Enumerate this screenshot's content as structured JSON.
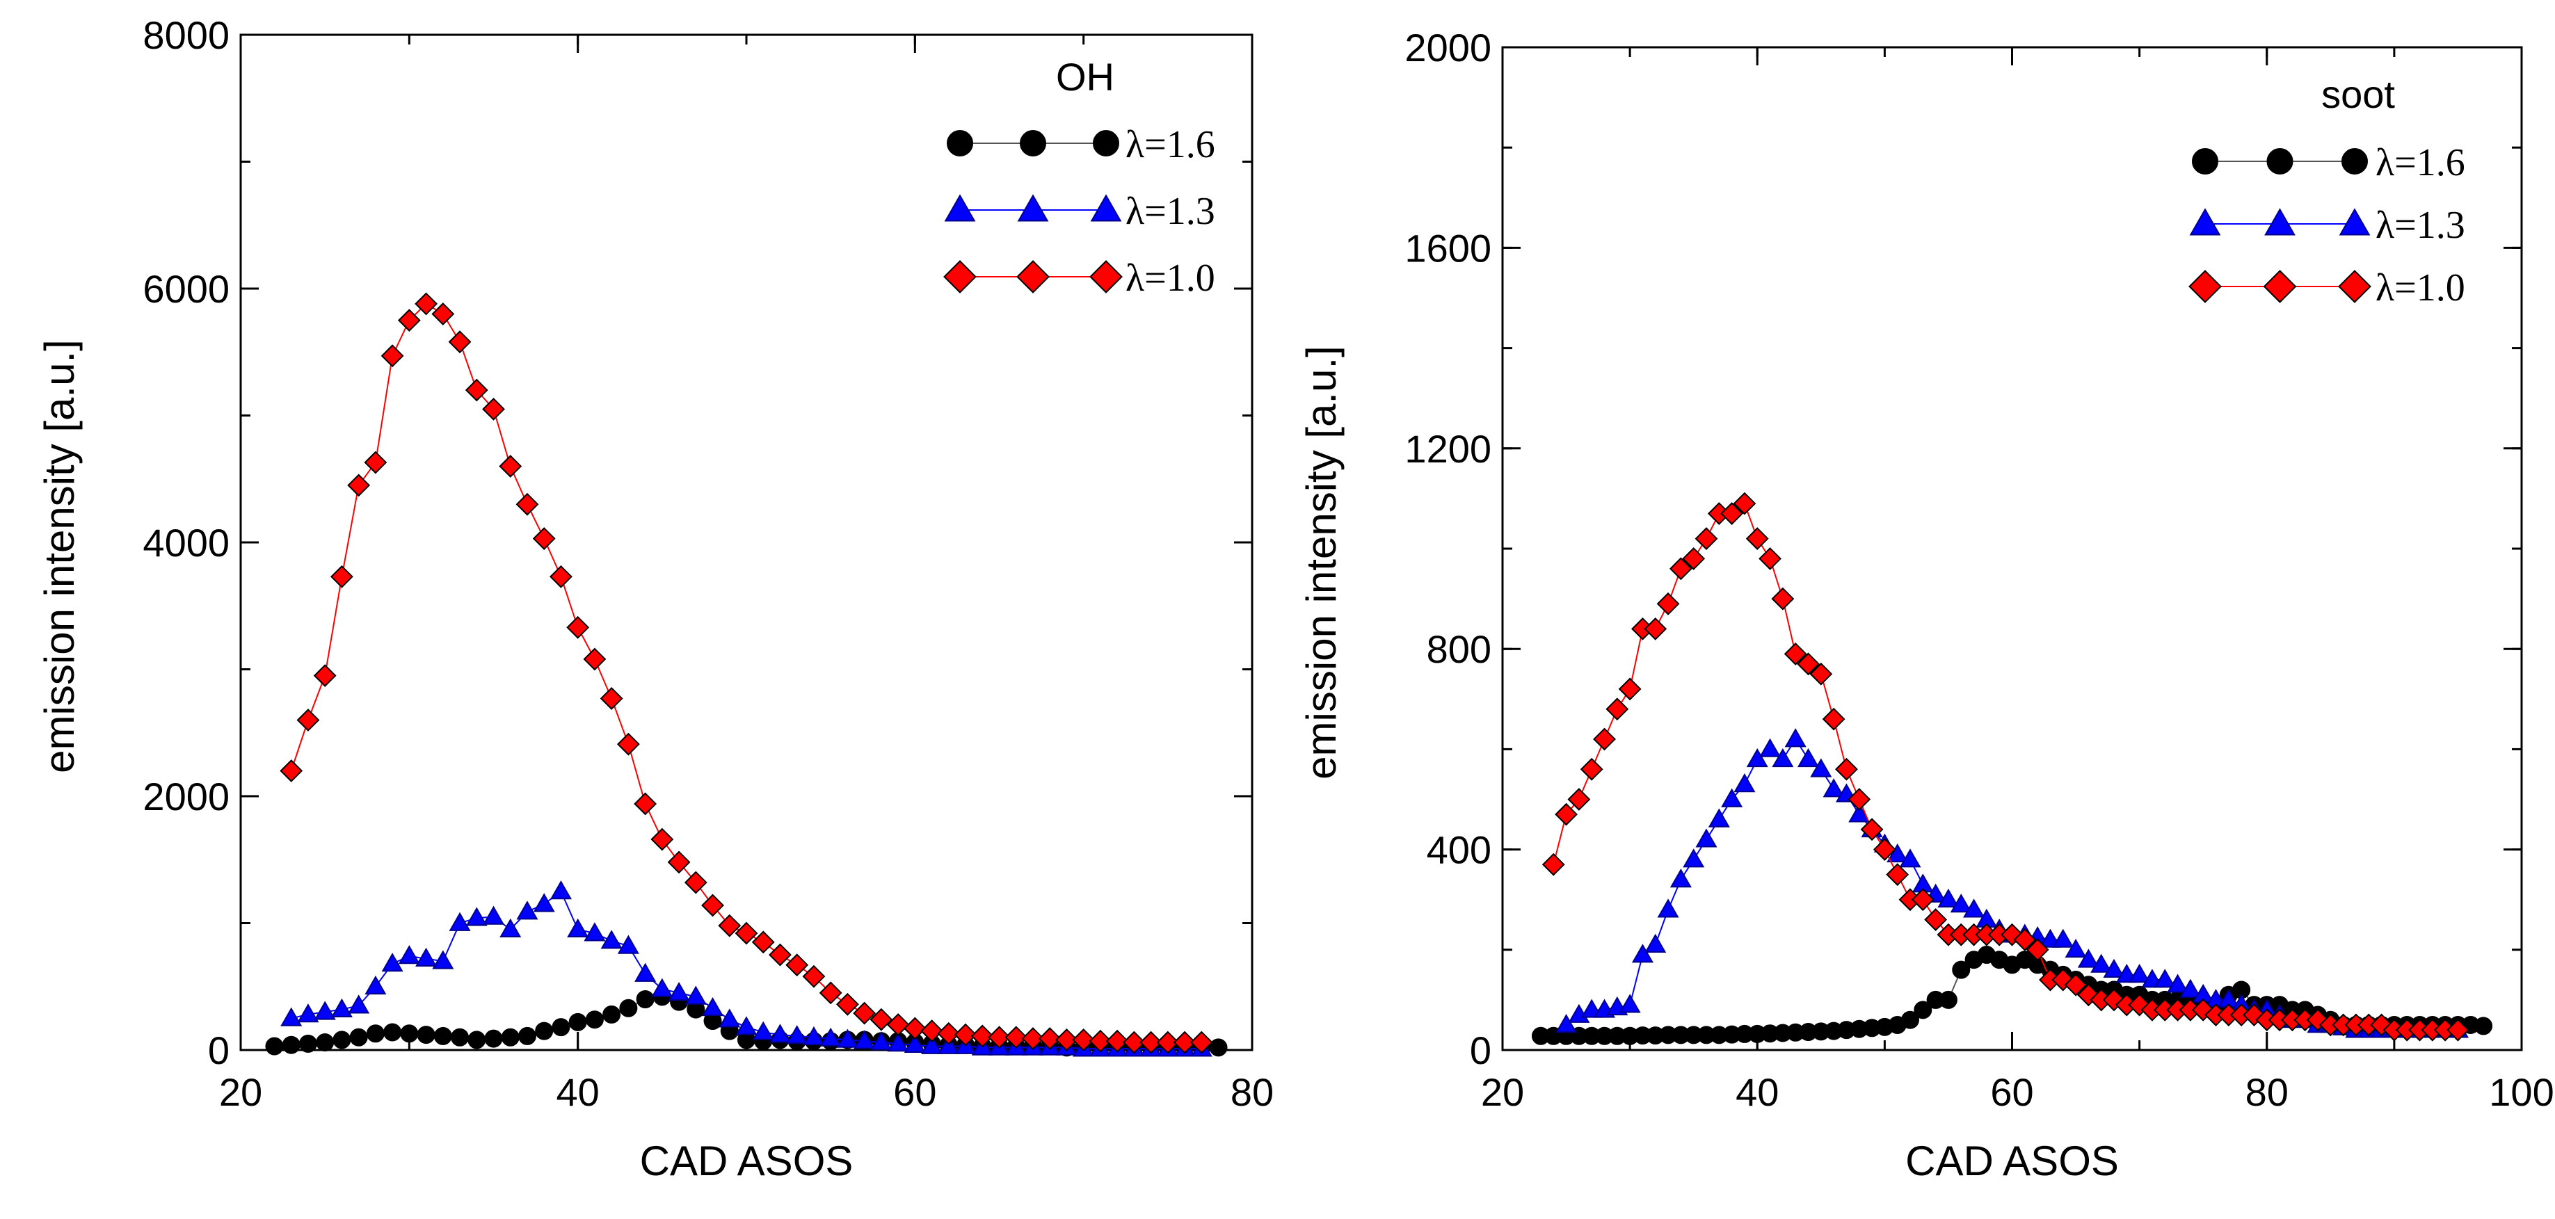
{
  "chart_data": [
    {
      "type": "line",
      "title": "",
      "legend_title": "OH",
      "xlabel": "CAD ASOS",
      "ylabel": "emission intensity [a.u.]",
      "xlim": [
        20,
        80
      ],
      "ylim": [
        0,
        8000
      ],
      "x_ticks": [
        20,
        40,
        60,
        80
      ],
      "y_ticks": [
        0,
        2000,
        4000,
        6000,
        8000
      ],
      "x_minor_step": 10,
      "y_minor_step": 1000,
      "legend_position": "top-right",
      "series": [
        {
          "name": "λ=1.6",
          "color": "#000000",
          "marker": "circle",
          "x": [
            22,
            23,
            24,
            25,
            26,
            27,
            28,
            29,
            30,
            31,
            32,
            33,
            34,
            35,
            36,
            37,
            38,
            39,
            40,
            41,
            42,
            43,
            44,
            45,
            46,
            47,
            48,
            49,
            50,
            51,
            52,
            53,
            54,
            55,
            56,
            57,
            58,
            59,
            60,
            61,
            62,
            63,
            64,
            65,
            66,
            67,
            68,
            69,
            70,
            71,
            72,
            73,
            74,
            75,
            76,
            77,
            78
          ],
          "y": [
            30,
            40,
            50,
            60,
            80,
            100,
            130,
            140,
            130,
            120,
            110,
            100,
            80,
            90,
            100,
            110,
            150,
            180,
            220,
            240,
            280,
            330,
            400,
            420,
            380,
            320,
            230,
            150,
            80,
            70,
            80,
            70,
            70,
            70,
            80,
            80,
            70,
            70,
            60,
            50,
            40,
            40,
            30,
            30,
            30,
            30,
            30,
            20,
            20,
            20,
            20,
            20,
            20,
            20,
            20,
            20,
            20
          ]
        },
        {
          "name": "λ=1.3",
          "color": "#0000ff",
          "marker": "triangle",
          "x": [
            23,
            24,
            25,
            26,
            27,
            28,
            29,
            30,
            31,
            32,
            33,
            34,
            35,
            36,
            37,
            38,
            39,
            40,
            41,
            42,
            43,
            44,
            45,
            46,
            47,
            48,
            49,
            50,
            51,
            52,
            53,
            54,
            55,
            56,
            57,
            58,
            59,
            60,
            61,
            62,
            63,
            64,
            65,
            66,
            67,
            68,
            69,
            70,
            71,
            72,
            73,
            74,
            75,
            76,
            77
          ],
          "y": [
            250,
            280,
            300,
            320,
            350,
            500,
            680,
            740,
            720,
            700,
            1000,
            1040,
            1050,
            950,
            1090,
            1150,
            1250,
            950,
            920,
            860,
            820,
            600,
            480,
            450,
            420,
            330,
            240,
            180,
            140,
            120,
            110,
            100,
            90,
            80,
            70,
            60,
            50,
            40,
            30,
            30,
            30,
            20,
            20,
            20,
            20,
            20,
            20,
            10,
            10,
            10,
            10,
            10,
            10,
            10,
            10
          ]
        },
        {
          "name": "λ=1.0",
          "color": "#ff0000",
          "marker": "diamond",
          "x": [
            23,
            24,
            25,
            26,
            27,
            28,
            29,
            30,
            31,
            32,
            33,
            34,
            35,
            36,
            37,
            38,
            39,
            40,
            41,
            42,
            43,
            44,
            45,
            46,
            47,
            48,
            49,
            50,
            51,
            52,
            53,
            54,
            55,
            56,
            57,
            58,
            59,
            60,
            61,
            62,
            63,
            64,
            65,
            66,
            67,
            68,
            69,
            70,
            71,
            72,
            73,
            74,
            75,
            76,
            77
          ],
          "y": [
            2200,
            2600,
            2950,
            3730,
            4450,
            4630,
            5470,
            5750,
            5880,
            5800,
            5580,
            5200,
            5050,
            4600,
            4300,
            4030,
            3730,
            3330,
            3080,
            2770,
            2410,
            1940,
            1660,
            1480,
            1320,
            1140,
            980,
            920,
            850,
            750,
            670,
            580,
            450,
            360,
            290,
            240,
            200,
            170,
            150,
            130,
            120,
            110,
            100,
            100,
            90,
            90,
            80,
            80,
            70,
            70,
            60,
            60,
            60,
            60,
            60
          ]
        }
      ]
    },
    {
      "type": "line",
      "title": "",
      "legend_title": "soot",
      "xlabel": "CAD ASOS",
      "ylabel": "emission intensity [a.u.]",
      "xlim": [
        20,
        100
      ],
      "ylim": [
        0,
        2000
      ],
      "x_ticks": [
        20,
        40,
        60,
        80,
        100
      ],
      "y_ticks": [
        0,
        400,
        800,
        1200,
        1600,
        2000
      ],
      "x_minor_step": 10,
      "y_minor_step": 200,
      "legend_position": "top-right",
      "series": [
        {
          "name": "λ=1.6",
          "color": "#000000",
          "marker": "circle",
          "x": [
            23,
            24,
            25,
            26,
            27,
            28,
            29,
            30,
            31,
            32,
            33,
            34,
            35,
            36,
            37,
            38,
            39,
            40,
            41,
            42,
            43,
            44,
            45,
            46,
            47,
            48,
            49,
            50,
            51,
            52,
            53,
            54,
            55,
            56,
            57,
            58,
            59,
            60,
            61,
            62,
            63,
            64,
            65,
            66,
            67,
            68,
            69,
            70,
            71,
            72,
            73,
            74,
            75,
            76,
            77,
            78,
            79,
            80,
            81,
            82,
            83,
            84,
            85,
            86,
            87,
            88,
            89,
            90,
            91,
            92,
            93,
            94,
            95,
            96,
            97
          ],
          "y": [
            28,
            28,
            28,
            28,
            28,
            28,
            28,
            28,
            29,
            29,
            30,
            30,
            30,
            30,
            30,
            31,
            32,
            32,
            33,
            34,
            35,
            36,
            37,
            38,
            40,
            42,
            44,
            46,
            50,
            60,
            80,
            100,
            100,
            160,
            180,
            190,
            180,
            170,
            180,
            170,
            160,
            150,
            140,
            130,
            120,
            120,
            110,
            110,
            100,
            100,
            100,
            90,
            90,
            90,
            110,
            120,
            90,
            90,
            90,
            80,
            80,
            70,
            60,
            50,
            50,
            50,
            50,
            50,
            50,
            50,
            50,
            50,
            50,
            50,
            48
          ]
        },
        {
          "name": "λ=1.3",
          "color": "#0000ff",
          "marker": "triangle",
          "x": [
            25,
            26,
            27,
            28,
            29,
            30,
            31,
            32,
            33,
            34,
            35,
            36,
            37,
            38,
            39,
            40,
            41,
            42,
            43,
            44,
            45,
            46,
            47,
            48,
            49,
            50,
            51,
            52,
            53,
            54,
            55,
            56,
            57,
            58,
            59,
            60,
            61,
            62,
            63,
            64,
            65,
            66,
            67,
            68,
            69,
            70,
            71,
            72,
            73,
            74,
            75,
            76,
            77,
            78,
            79,
            80,
            81,
            82,
            83,
            84,
            85,
            86,
            87,
            88,
            89,
            90,
            91,
            92,
            93,
            94,
            95
          ],
          "y": [
            50,
            70,
            80,
            80,
            85,
            90,
            190,
            210,
            280,
            340,
            380,
            420,
            460,
            500,
            530,
            580,
            600,
            580,
            620,
            580,
            560,
            520,
            510,
            470,
            440,
            410,
            390,
            380,
            330,
            310,
            300,
            290,
            280,
            260,
            240,
            230,
            230,
            225,
            220,
            220,
            200,
            180,
            170,
            160,
            150,
            150,
            140,
            140,
            130,
            120,
            110,
            100,
            100,
            90,
            80,
            80,
            70,
            60,
            60,
            50,
            50,
            45,
            40,
            40,
            40,
            40,
            40,
            40,
            40,
            40,
            40
          ]
        },
        {
          "name": "λ=1.0",
          "color": "#ff0000",
          "marker": "diamond",
          "x": [
            24,
            25,
            26,
            27,
            28,
            29,
            30,
            31,
            32,
            33,
            34,
            35,
            36,
            37,
            38,
            39,
            40,
            41,
            42,
            43,
            44,
            45,
            46,
            47,
            48,
            49,
            50,
            51,
            52,
            53,
            54,
            55,
            56,
            57,
            58,
            59,
            60,
            61,
            62,
            63,
            64,
            65,
            66,
            67,
            68,
            69,
            70,
            71,
            72,
            73,
            74,
            75,
            76,
            77,
            78,
            79,
            80,
            81,
            82,
            83,
            84,
            85,
            86,
            87,
            88,
            89,
            90,
            91,
            92,
            93,
            94,
            95
          ],
          "y": [
            370,
            470,
            500,
            560,
            620,
            680,
            720,
            840,
            840,
            890,
            960,
            980,
            1020,
            1070,
            1070,
            1090,
            1020,
            980,
            900,
            790,
            770,
            750,
            660,
            560,
            500,
            440,
            400,
            350,
            300,
            300,
            260,
            230,
            230,
            230,
            230,
            230,
            230,
            220,
            200,
            140,
            140,
            130,
            110,
            100,
            100,
            90,
            90,
            80,
            80,
            80,
            80,
            80,
            70,
            70,
            70,
            70,
            60,
            60,
            60,
            60,
            60,
            50,
            50,
            50,
            50,
            50,
            40,
            40,
            40,
            40,
            40,
            40
          ]
        }
      ]
    }
  ]
}
